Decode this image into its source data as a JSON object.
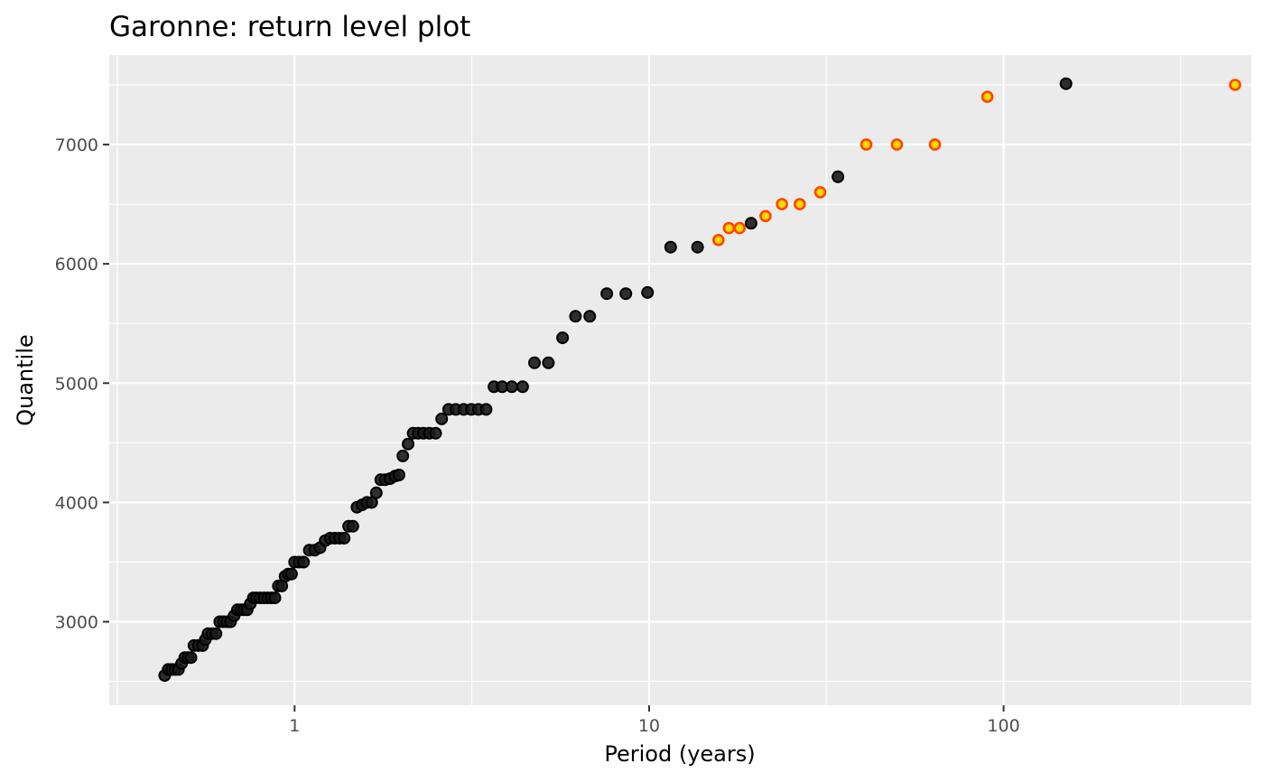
{
  "chart_data": {
    "type": "scatter",
    "title": "Garonne: return level plot",
    "xlabel": "Period (years)",
    "ylabel": "Quantile",
    "x_scale": "log10",
    "xlim": [
      0.3,
      500
    ],
    "ylim": [
      2300,
      7750
    ],
    "x_ticks": [
      {
        "value": 1,
        "label": "1"
      },
      {
        "value": 10,
        "label": "10"
      },
      {
        "value": 100,
        "label": "100"
      }
    ],
    "x_minor_gridlines": [
      0.316,
      3.16,
      31.6,
      316
    ],
    "y_ticks": [
      {
        "value": 3000,
        "label": "3000"
      },
      {
        "value": 4000,
        "label": "4000"
      },
      {
        "value": 5000,
        "label": "5000"
      },
      {
        "value": 6000,
        "label": "6000"
      },
      {
        "value": 7000,
        "label": "7000"
      }
    ],
    "y_minor_gridlines": [
      2500,
      3500,
      4500,
      5500,
      6500,
      7500
    ],
    "grid": true,
    "colors": {
      "panel_background": "#ebebeb",
      "grid_line": "#ffffff",
      "point_fill_black": "#1a1a1a",
      "point_outline_black": "#000000",
      "point_fill_highlight": "#ffd700",
      "point_outline_highlight": "#ff4500"
    },
    "series": [
      {
        "style": "black",
        "points": [
          [
            0.43,
            2550
          ],
          [
            0.44,
            2600
          ],
          [
            0.45,
            2600
          ],
          [
            0.46,
            2600
          ],
          [
            0.47,
            2600
          ],
          [
            0.48,
            2650
          ],
          [
            0.49,
            2700
          ],
          [
            0.5,
            2700
          ],
          [
            0.51,
            2700
          ],
          [
            0.52,
            2800
          ],
          [
            0.535,
            2800
          ],
          [
            0.55,
            2800
          ],
          [
            0.56,
            2850
          ],
          [
            0.57,
            2900
          ],
          [
            0.585,
            2900
          ],
          [
            0.6,
            2900
          ],
          [
            0.615,
            3000
          ],
          [
            0.63,
            3000
          ],
          [
            0.645,
            3000
          ],
          [
            0.66,
            3000
          ],
          [
            0.675,
            3050
          ],
          [
            0.69,
            3100
          ],
          [
            0.705,
            3100
          ],
          [
            0.72,
            3100
          ],
          [
            0.735,
            3100
          ],
          [
            0.75,
            3150
          ],
          [
            0.765,
            3200
          ],
          [
            0.78,
            3200
          ],
          [
            0.8,
            3200
          ],
          [
            0.82,
            3200
          ],
          [
            0.84,
            3200
          ],
          [
            0.86,
            3200
          ],
          [
            0.88,
            3200
          ],
          [
            0.9,
            3300
          ],
          [
            0.92,
            3300
          ],
          [
            0.94,
            3380
          ],
          [
            0.96,
            3400
          ],
          [
            0.98,
            3400
          ],
          [
            1.0,
            3500
          ],
          [
            1.03,
            3500
          ],
          [
            1.06,
            3500
          ],
          [
            1.1,
            3600
          ],
          [
            1.14,
            3600
          ],
          [
            1.18,
            3620
          ],
          [
            1.22,
            3680
          ],
          [
            1.26,
            3700
          ],
          [
            1.3,
            3700
          ],
          [
            1.34,
            3700
          ],
          [
            1.38,
            3700
          ],
          [
            1.42,
            3800
          ],
          [
            1.46,
            3800
          ],
          [
            1.5,
            3960
          ],
          [
            1.55,
            3980
          ],
          [
            1.6,
            4000
          ],
          [
            1.65,
            4000
          ],
          [
            1.7,
            4080
          ],
          [
            1.75,
            4190
          ],
          [
            1.8,
            4190
          ],
          [
            1.86,
            4200
          ],
          [
            1.92,
            4220
          ],
          [
            1.97,
            4230
          ],
          [
            2.02,
            4390
          ],
          [
            2.09,
            4490
          ],
          [
            2.16,
            4580
          ],
          [
            2.23,
            4580
          ],
          [
            2.31,
            4580
          ],
          [
            2.4,
            4580
          ],
          [
            2.5,
            4580
          ],
          [
            2.6,
            4700
          ],
          [
            2.72,
            4780
          ],
          [
            2.85,
            4780
          ],
          [
            3.0,
            4780
          ],
          [
            3.15,
            4780
          ],
          [
            3.3,
            4780
          ],
          [
            3.47,
            4780
          ],
          [
            3.65,
            4970
          ],
          [
            3.85,
            4970
          ],
          [
            4.1,
            4970
          ],
          [
            4.4,
            4970
          ],
          [
            4.75,
            5170
          ],
          [
            5.2,
            5170
          ],
          [
            5.7,
            5380
          ],
          [
            6.2,
            5560
          ],
          [
            6.8,
            5560
          ],
          [
            7.6,
            5750
          ],
          [
            8.6,
            5750
          ],
          [
            9.9,
            5760
          ],
          [
            11.5,
            6140
          ],
          [
            13.7,
            6140
          ],
          [
            19.4,
            6340
          ],
          [
            34.1,
            6730
          ],
          [
            150,
            7510
          ]
        ]
      },
      {
        "style": "highlight",
        "points": [
          [
            15.7,
            6200
          ],
          [
            16.8,
            6300
          ],
          [
            18.0,
            6300
          ],
          [
            21.3,
            6400
          ],
          [
            23.7,
            6500
          ],
          [
            26.6,
            6500
          ],
          [
            30.4,
            6600
          ],
          [
            41,
            7000
          ],
          [
            50,
            7000
          ],
          [
            64,
            7000
          ],
          [
            90,
            7400
          ],
          [
            450,
            7500
          ]
        ]
      }
    ]
  }
}
